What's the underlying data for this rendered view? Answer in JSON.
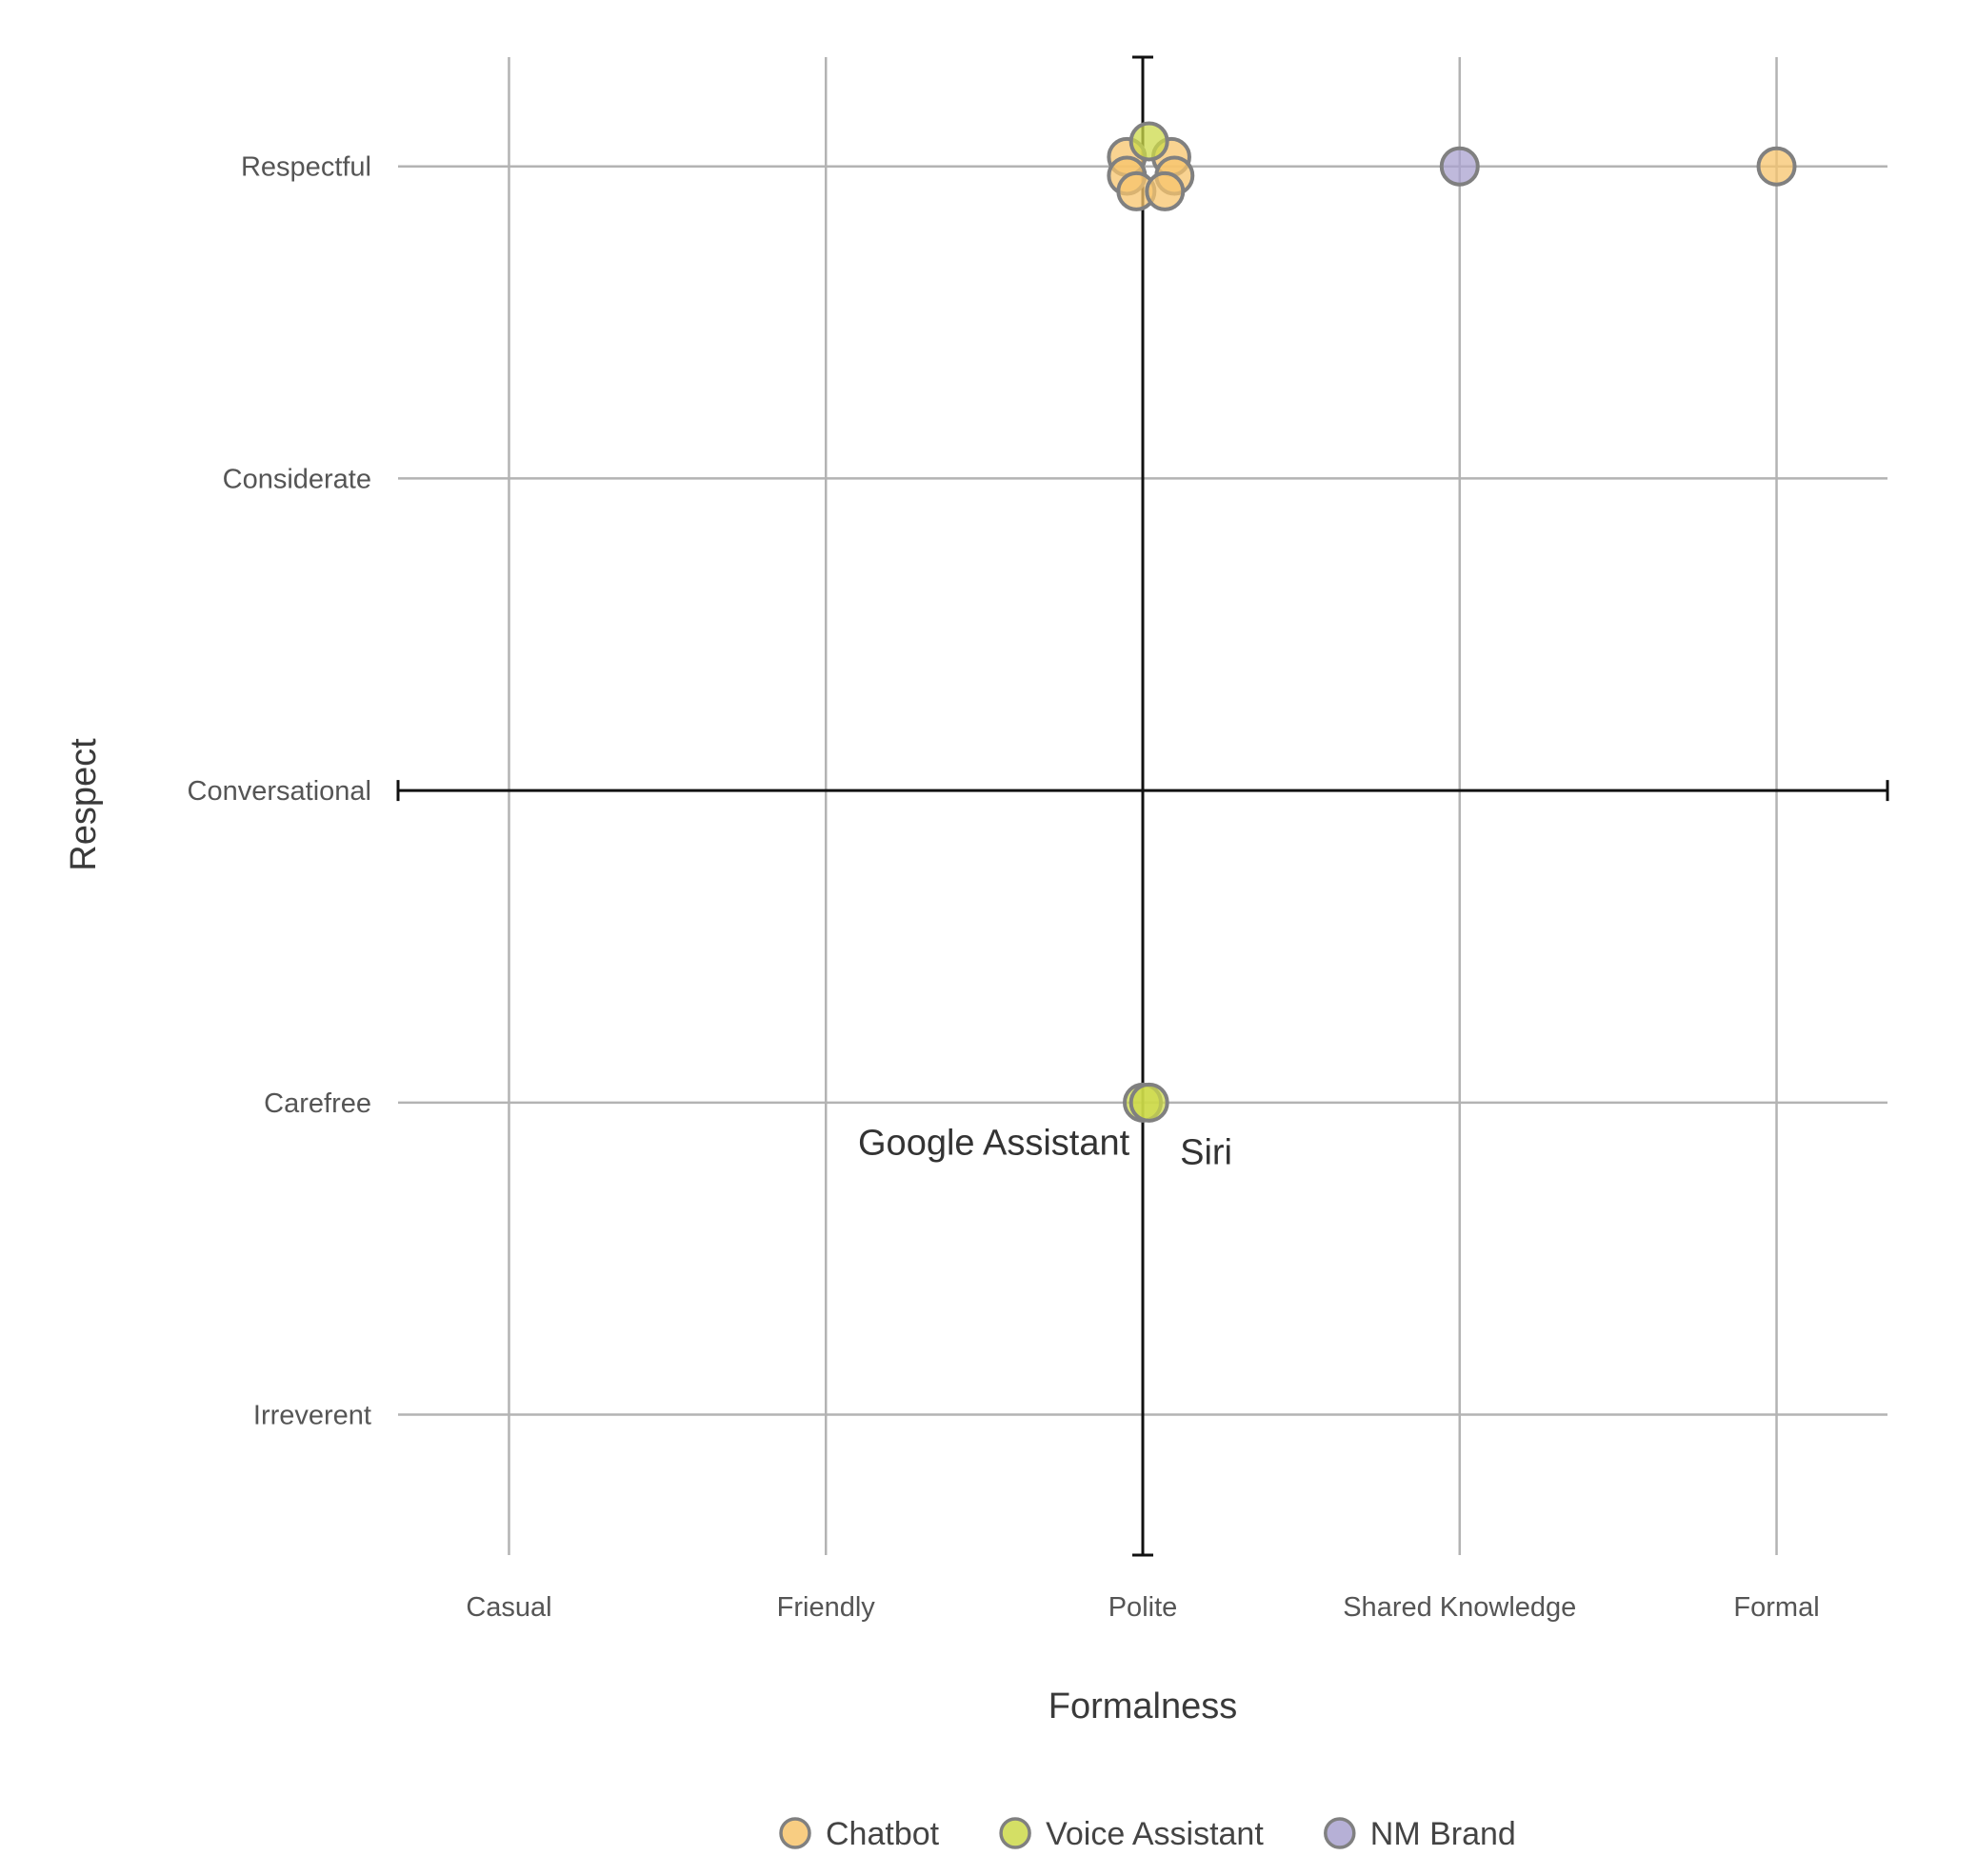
{
  "chart_data": {
    "type": "scatter",
    "xlabel": "Formalness",
    "ylabel": "Respect",
    "x_categories": [
      "Casual",
      "Friendly",
      "Polite",
      "Shared Knowledge",
      "Formal"
    ],
    "y_categories": [
      "Irreverent",
      "Carefree",
      "Conversational",
      "Considerate",
      "Respectful"
    ],
    "xlim": [
      0.65,
      5.35
    ],
    "ylim": [
      0.55,
      5.35
    ],
    "grid": true,
    "legend_position": "bottom",
    "series": [
      {
        "name": "Chatbot",
        "color": "#f7c46c",
        "points": [
          {
            "x": 2.95,
            "y": 5.03
          },
          {
            "x": 3.09,
            "y": 5.03
          },
          {
            "x": 2.95,
            "y": 4.97
          },
          {
            "x": 3.1,
            "y": 4.97
          },
          {
            "x": 2.98,
            "y": 4.92
          },
          {
            "x": 3.07,
            "y": 4.92
          },
          {
            "x": 5.0,
            "y": 5.0
          }
        ]
      },
      {
        "name": "Voice Assistant",
        "color": "#ccd94a",
        "points": [
          {
            "x": 3.02,
            "y": 5.08
          },
          {
            "x": 3.0,
            "y": 2.0
          },
          {
            "x": 3.02,
            "y": 2.0
          }
        ]
      },
      {
        "name": "NM Brand",
        "color": "#a9a2cf",
        "points": [
          {
            "x": 4.0,
            "y": 5.0
          }
        ]
      }
    ],
    "annotations": [
      {
        "text": "Google Assistant",
        "x": 2.53,
        "y": 1.87
      },
      {
        "text": "Siri",
        "x": 3.2,
        "y": 1.84
      }
    ]
  }
}
